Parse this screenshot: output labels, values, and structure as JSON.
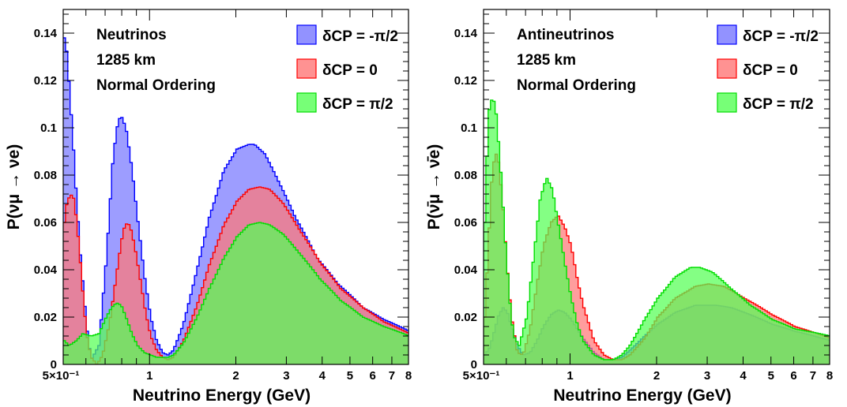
{
  "chart_data": [
    {
      "type": "area",
      "panel": "left",
      "annotation": [
        "Neutrinos",
        "1285 km",
        "Normal Ordering"
      ],
      "xlabel": "Neutrino Energy (GeV)",
      "ylabel": "P(νμ → νe)",
      "x_scale": "log",
      "xlim": [
        0.5,
        8
      ],
      "ylim": [
        0,
        0.15
      ],
      "x_ticks": [
        "5×10⁻¹",
        "1",
        "2",
        "3",
        "4",
        "5",
        "6",
        "7",
        "8"
      ],
      "y_ticks": [
        "0",
        "0.02",
        "0.04",
        "0.06",
        "0.08",
        "0.1",
        "0.12",
        "0.14"
      ],
      "legend_position": "top-right",
      "series": [
        {
          "name": "δCP = -π/2",
          "fill": "#7777ff",
          "stroke": "#0000ff",
          "x": [
            0.5,
            0.51,
            0.52,
            0.535,
            0.55,
            0.57,
            0.6,
            0.62,
            0.66,
            0.7,
            0.74,
            0.77,
            0.79,
            0.82,
            0.86,
            0.9,
            0.95,
            1.0,
            1.05,
            1.1,
            1.15,
            1.2,
            1.3,
            1.45,
            1.6,
            1.8,
            2.0,
            2.2,
            2.3,
            2.5,
            2.8,
            3.2,
            3.8,
            4.5,
            5.5,
            6.5,
            8.0
          ],
          "y": [
            0.138,
            0.132,
            0.118,
            0.096,
            0.072,
            0.045,
            0.015,
            0.002,
            0.008,
            0.044,
            0.088,
            0.103,
            0.105,
            0.1,
            0.083,
            0.062,
            0.038,
            0.02,
            0.01,
            0.005,
            0.004,
            0.006,
            0.017,
            0.04,
            0.062,
            0.082,
            0.091,
            0.093,
            0.093,
            0.089,
            0.077,
            0.062,
            0.045,
            0.034,
            0.024,
            0.019,
            0.014
          ]
        },
        {
          "name": "δCP = 0",
          "fill": "#ff7777",
          "stroke": "#ff0000",
          "x": [
            0.5,
            0.51,
            0.525,
            0.54,
            0.555,
            0.57,
            0.585,
            0.6,
            0.62,
            0.65,
            0.68,
            0.72,
            0.76,
            0.79,
            0.81,
            0.83,
            0.85,
            0.88,
            0.92,
            0.96,
            1.0,
            1.05,
            1.1,
            1.15,
            1.2,
            1.3,
            1.45,
            1.6,
            1.8,
            2.0,
            2.2,
            2.4,
            2.6,
            2.9,
            3.3,
            3.9,
            4.6,
            5.5,
            6.5,
            8.0
          ],
          "y": [
            0.06,
            0.068,
            0.072,
            0.07,
            0.058,
            0.042,
            0.025,
            0.012,
            0.003,
            0.0,
            0.004,
            0.018,
            0.038,
            0.052,
            0.058,
            0.06,
            0.058,
            0.05,
            0.036,
            0.022,
            0.012,
            0.006,
            0.003,
            0.002,
            0.003,
            0.01,
            0.025,
            0.042,
            0.059,
            0.069,
            0.074,
            0.075,
            0.074,
            0.068,
            0.057,
            0.043,
            0.032,
            0.024,
            0.018,
            0.013
          ]
        },
        {
          "name": "δCP = π/2",
          "fill": "#55ff55",
          "stroke": "#00dd00",
          "x": [
            0.5,
            0.52,
            0.55,
            0.58,
            0.62,
            0.66,
            0.7,
            0.73,
            0.76,
            0.79,
            0.82,
            0.86,
            0.9,
            0.95,
            1.0,
            1.05,
            1.1,
            1.15,
            1.2,
            1.3,
            1.45,
            1.6,
            1.8,
            2.0,
            2.2,
            2.4,
            2.6,
            2.9,
            3.3,
            3.9,
            4.6,
            5.5,
            6.5,
            8.0
          ],
          "y": [
            0.01,
            0.008,
            0.01,
            0.013,
            0.012,
            0.013,
            0.02,
            0.024,
            0.026,
            0.025,
            0.02,
            0.013,
            0.008,
            0.005,
            0.004,
            0.003,
            0.003,
            0.003,
            0.004,
            0.009,
            0.02,
            0.032,
            0.045,
            0.054,
            0.059,
            0.06,
            0.059,
            0.055,
            0.047,
            0.036,
            0.027,
            0.02,
            0.016,
            0.012
          ]
        }
      ]
    },
    {
      "type": "area",
      "panel": "right",
      "annotation": [
        "Antineutrinos",
        "1285 km",
        "Normal Ordering"
      ],
      "xlabel": "Neutrino Energy (GeV)",
      "ylabel": "P(ν̄μ → ν̄e)",
      "x_scale": "log",
      "xlim": [
        0.5,
        8
      ],
      "ylim": [
        0,
        0.15
      ],
      "x_ticks": [
        "5×10⁻¹",
        "1",
        "2",
        "3",
        "4",
        "5",
        "6",
        "7",
        "8"
      ],
      "y_ticks": [
        "0",
        "0.02",
        "0.04",
        "0.06",
        "0.08",
        "0.1",
        "0.12",
        "0.14"
      ],
      "legend_position": "top-right",
      "series": [
        {
          "name": "δCP = -π/2",
          "fill": "#7777ff",
          "stroke": "#0000ff",
          "x": [
            0.5,
            0.52,
            0.54,
            0.56,
            0.58,
            0.6,
            0.62,
            0.65,
            0.68,
            0.72,
            0.76,
            0.8,
            0.85,
            0.9,
            0.95,
            1.0,
            1.05,
            1.1,
            1.2,
            1.3,
            1.4,
            1.5,
            1.6,
            1.8,
            2.0,
            2.3,
            2.7,
            3.2,
            3.6,
            4.2,
            5.0,
            6.0,
            8.0
          ],
          "y": [
            0.004,
            0.007,
            0.014,
            0.021,
            0.024,
            0.022,
            0.016,
            0.008,
            0.004,
            0.005,
            0.01,
            0.016,
            0.021,
            0.023,
            0.022,
            0.019,
            0.015,
            0.011,
            0.005,
            0.002,
            0.002,
            0.003,
            0.006,
            0.012,
            0.017,
            0.022,
            0.025,
            0.025,
            0.024,
            0.021,
            0.017,
            0.014,
            0.01
          ]
        },
        {
          "name": "δCP = 0",
          "fill": "#ff7777",
          "stroke": "#ff0000",
          "x": [
            0.5,
            0.515,
            0.53,
            0.545,
            0.56,
            0.58,
            0.6,
            0.62,
            0.65,
            0.68,
            0.72,
            0.76,
            0.8,
            0.85,
            0.9,
            0.95,
            1.0,
            1.05,
            1.1,
            1.2,
            1.3,
            1.4,
            1.5,
            1.6,
            1.8,
            2.0,
            2.3,
            2.7,
            3.0,
            3.4,
            4.0,
            5.0,
            6.0,
            8.0
          ],
          "y": [
            0.02,
            0.05,
            0.08,
            0.09,
            0.085,
            0.065,
            0.04,
            0.02,
            0.005,
            0.004,
            0.015,
            0.034,
            0.05,
            0.06,
            0.063,
            0.058,
            0.05,
            0.036,
            0.025,
            0.01,
            0.004,
            0.002,
            0.002,
            0.004,
            0.011,
            0.02,
            0.028,
            0.033,
            0.034,
            0.033,
            0.028,
            0.021,
            0.016,
            0.011
          ]
        },
        {
          "name": "δCP = π/2",
          "fill": "#55ff55",
          "stroke": "#00dd00",
          "x": [
            0.5,
            0.51,
            0.52,
            0.535,
            0.55,
            0.57,
            0.59,
            0.61,
            0.63,
            0.66,
            0.7,
            0.74,
            0.78,
            0.82,
            0.86,
            0.9,
            0.95,
            1.0,
            1.05,
            1.1,
            1.2,
            1.3,
            1.4,
            1.5,
            1.6,
            1.8,
            2.0,
            2.3,
            2.6,
            2.8,
            3.1,
            3.6,
            4.2,
            5.0,
            6.0,
            8.0
          ],
          "y": [
            0.06,
            0.09,
            0.11,
            0.113,
            0.105,
            0.08,
            0.052,
            0.028,
            0.012,
            0.008,
            0.02,
            0.045,
            0.07,
            0.079,
            0.074,
            0.06,
            0.043,
            0.028,
            0.017,
            0.01,
            0.004,
            0.002,
            0.002,
            0.004,
            0.008,
            0.019,
            0.028,
            0.037,
            0.041,
            0.041,
            0.039,
            0.032,
            0.025,
            0.019,
            0.015,
            0.012
          ]
        }
      ]
    }
  ]
}
